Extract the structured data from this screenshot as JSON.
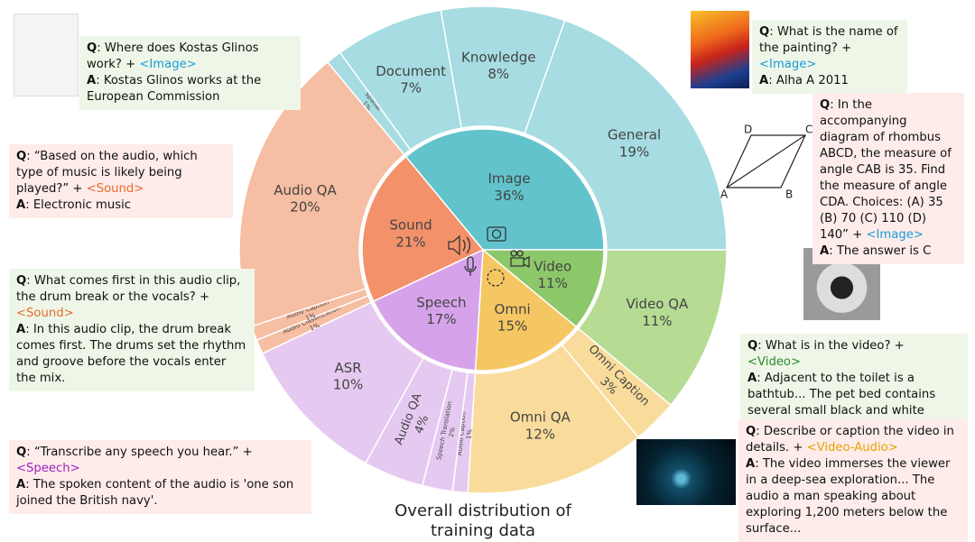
{
  "chart_data": {
    "type": "sunburst",
    "title": "Overall distribution of training data",
    "categories": [
      "Image",
      "Video",
      "Omni",
      "Speech",
      "Sound"
    ],
    "values": [
      36,
      11,
      15,
      17,
      21
    ],
    "value_labels": [
      "36%",
      "11%",
      "15%",
      "17%",
      "21%"
    ],
    "colors": [
      "#62c3cc",
      "#8cc76a",
      "#f5c762",
      "#d6a3ea",
      "#f3916a"
    ],
    "children": [
      {
        "categories": [
          "Spatial",
          "Document",
          "Knowledge",
          "General"
        ],
        "values": [
          1,
          7,
          8,
          19
        ],
        "value_labels": [
          "1%",
          "7%",
          "8%",
          "19%"
        ],
        "color": "#a6dce2"
      },
      {
        "categories": [
          "Video QA"
        ],
        "values": [
          11
        ],
        "value_labels": [
          "11%"
        ],
        "color": "#b6dc94"
      },
      {
        "categories": [
          "Omni Caption",
          "Omni QA"
        ],
        "values": [
          3,
          12
        ],
        "value_labels": [
          "3%",
          "12%"
        ],
        "color": "#f9dc9c"
      },
      {
        "categories": [
          "Audio Caption",
          "Speech Translation",
          "Audio QA",
          "ASR"
        ],
        "values": [
          1,
          2,
          4,
          10
        ],
        "value_labels": [
          "1%",
          "2%",
          "4%",
          "10%"
        ],
        "color": "#e6c9f1"
      },
      {
        "categories": [
          "Audio Classification",
          "Audio Caption",
          "Audio QA"
        ],
        "values": [
          1,
          1,
          20
        ],
        "value_labels": [
          "1%",
          "1%",
          "20%"
        ],
        "color": "#f6bea2"
      }
    ]
  },
  "callouts": [
    {
      "q": "Q",
      "question": ": Where does Kostas Glinos work? +",
      "tag": "<Image>",
      "tag_color": "#1a9bd7",
      "a": "A",
      "answer": ": Kostas Glinos works at the European Commission",
      "color": "#eef7e7"
    },
    {
      "q": "Q",
      "question": ": “Based on the audio, which type of music is likely being played?” +",
      "tag": "<Sound>",
      "tag_color": "#ea6a2c",
      "a": "A",
      "answer": ": Electronic music",
      "color": "#fdecea"
    },
    {
      "q": "Q",
      "question": ": What comes first in this audio clip, the drum break or the vocals? +",
      "tag": "<Sound>",
      "tag_color": "#ea6a2c",
      "a": "A",
      "answer": ": In this audio clip, the drum break comes first. The drums set the rhythm and groove before the vocals enter the mix.",
      "color": "#eef7e7"
    },
    {
      "q": "Q",
      "question": ": “Transcribe any speech you hear.” +",
      "tag": "<Speech>",
      "tag_color": "#a020c0",
      "a": "A",
      "answer": ": The spoken content of the audio is 'one son joined the British navy'.",
      "color": "#fdecea"
    },
    {
      "q": "Q",
      "question": ": What is the name of the painting? +",
      "tag": "<Image>",
      "tag_color": "#1a9bd7",
      "a": "A",
      "answer": ": Alha A 2011",
      "color": "#eef7e7"
    },
    {
      "q": "Q",
      "question": ": In the accompanying diagram of rhombus ABCD, the measure of angle CAB is 35. Find the measure of angle CDA. Choices: (A) 35 (B) 70 (C) 110 (D) 140” +",
      "tag": "<Image>",
      "tag_color": "#1a9bd7",
      "a": "A",
      "answer": ": The answer is C",
      "color": "#fdecea",
      "diagram_labels": [
        "A",
        "B",
        "C",
        "D"
      ]
    },
    {
      "q": "Q",
      "question": ": What is in the video? +",
      "tag": "<Video>",
      "tag_color": "#2a8a2a",
      "a": "A",
      "answer": ": Adjacent to the toilet is a bathtub... The pet bed contains several small black and white kittens, all huddled together...",
      "color": "#eef7e7"
    },
    {
      "q": "Q",
      "question": ": Describe or caption the video in details. +",
      "tag": "<Video-Audio>",
      "tag_color": "#e8a300",
      "a": "A",
      "answer": ": The video immerses the viewer in a deep-sea exploration... The audio a man speaking about exploring 1,200 meters below the surface...",
      "color": "#fdecea"
    }
  ]
}
